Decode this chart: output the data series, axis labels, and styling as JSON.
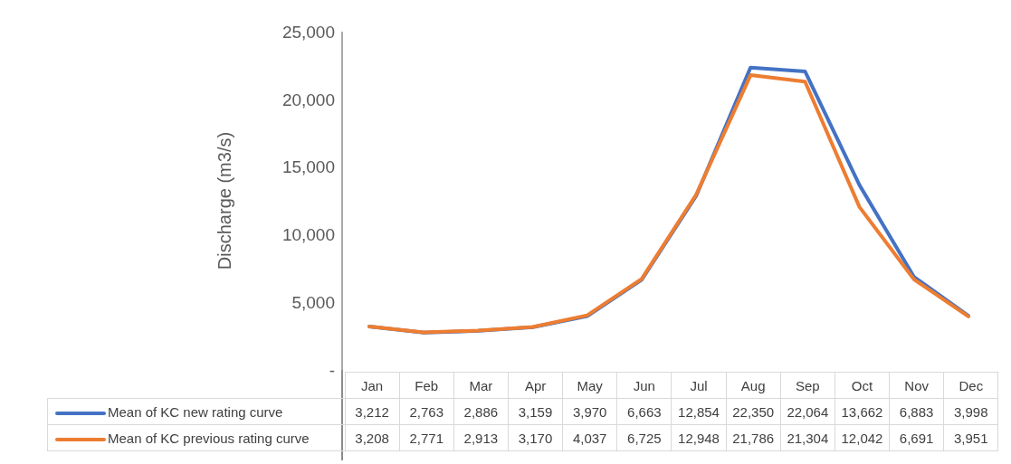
{
  "chart_data": {
    "type": "line",
    "ylabel": "Discharge (m3/s)",
    "categories": [
      "Jan",
      "Feb",
      "Mar",
      "Apr",
      "May",
      "Jun",
      "Jul",
      "Aug",
      "Sep",
      "Oct",
      "Nov",
      "Dec"
    ],
    "series": [
      {
        "name": "Mean of KC new rating curve",
        "color": "#4472c4",
        "values": [
          3212,
          2763,
          2886,
          3159,
          3970,
          6663,
          12854,
          22350,
          22064,
          13662,
          6883,
          3998
        ],
        "value_labels": [
          "3,212",
          "2,763",
          "2,886",
          "3,159",
          "3,970",
          "6,663",
          "12,854",
          "22,350",
          "22,064",
          "13,662",
          "6,883",
          "3,998"
        ]
      },
      {
        "name": "Mean of KC previous rating curve",
        "color": "#ed7d31",
        "values": [
          3208,
          2771,
          2913,
          3170,
          4037,
          6725,
          12948,
          21786,
          21304,
          12042,
          6691,
          3951
        ],
        "value_labels": [
          "3,208",
          "2,771",
          "2,913",
          "3,170",
          "4,037",
          "6,725",
          "12,948",
          "21,786",
          "21,304",
          "12,042",
          "6,691",
          "3,951"
        ]
      }
    ],
    "ylim": [
      0,
      25000
    ],
    "yticks": [
      {
        "value": 0,
        "label": "-"
      },
      {
        "value": 5000,
        "label": "5,000"
      },
      {
        "value": 10000,
        "label": "10,000"
      },
      {
        "value": 15000,
        "label": "15,000"
      },
      {
        "value": 20000,
        "label": "20,000"
      },
      {
        "value": 25000,
        "label": "25,000"
      }
    ],
    "grid": false,
    "legend": "bottom",
    "marker": "none",
    "line_style": "solid"
  }
}
